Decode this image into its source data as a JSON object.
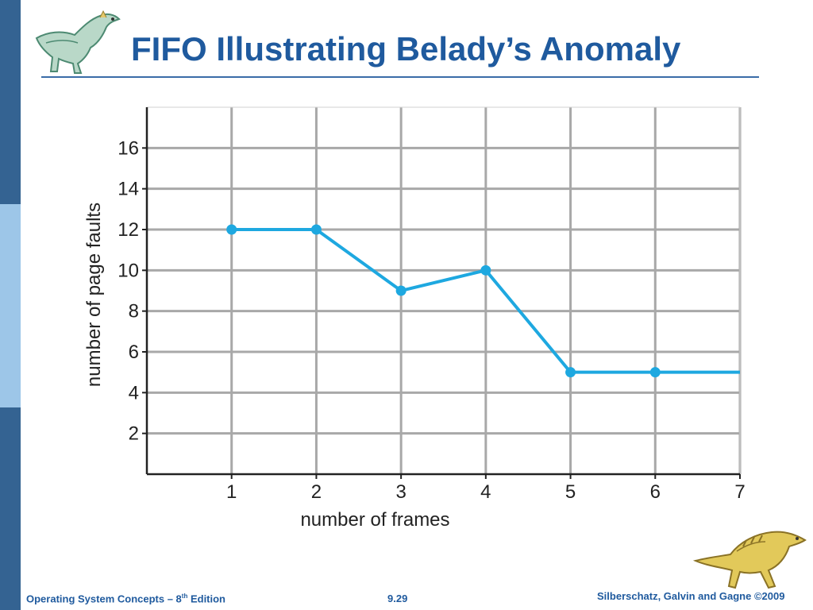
{
  "slide": {
    "title": "FIFO Illustrating Belady’s Anomaly",
    "footer": {
      "book": "Operating System Concepts – 8",
      "edition_sup": "th",
      "edition_suffix": " Edition",
      "page_number": "9.29",
      "authors": "Silberschatz, Galvin and Gagne ©2009"
    },
    "colors": {
      "accent": "#1f5a9e",
      "sidebar": "#346392",
      "sidebar_light": "#9dc6e8",
      "series": "#1ea8e0"
    },
    "icons": [
      "dinosaur-logo-icon",
      "dinosaur-footer-icon"
    ]
  },
  "chart_data": {
    "type": "line",
    "x": [
      1,
      2,
      3,
      4,
      5,
      6,
      7
    ],
    "series": [
      {
        "values": [
          12,
          12,
          9,
          10,
          5,
          5,
          5
        ],
        "markers": [
          true,
          true,
          true,
          true,
          true,
          true,
          false
        ]
      }
    ],
    "xlabel": "number of frames",
    "ylabel": "number of page faults",
    "xlim": [
      0,
      7
    ],
    "ylim": [
      0,
      18
    ],
    "xticks": [
      1,
      2,
      3,
      4,
      5,
      6,
      7
    ],
    "yticks": [
      2,
      4,
      6,
      8,
      10,
      12,
      14,
      16
    ],
    "grid": true
  }
}
